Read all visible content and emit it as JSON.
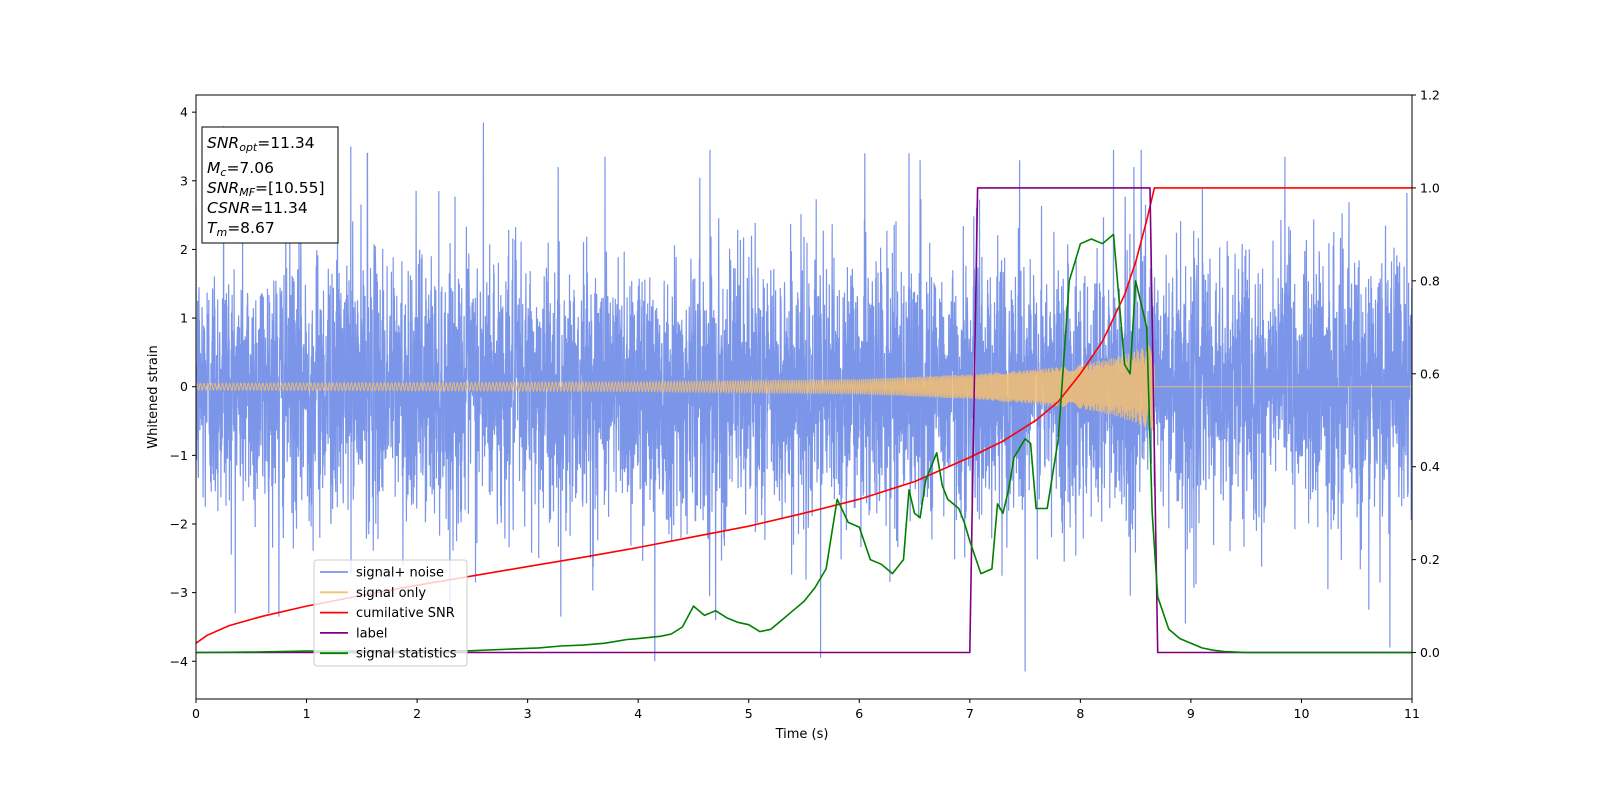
{
  "chart_data": {
    "type": "line",
    "xlabel": "Time (s)",
    "ylabel": "Whitened strain",
    "xlim": [
      0,
      11
    ],
    "ylim": [
      -4.55,
      4.25
    ],
    "y2lim": [
      -0.1,
      1.2
    ],
    "xticks": [
      "0",
      "1",
      "2",
      "3",
      "4",
      "5",
      "6",
      "7",
      "8",
      "9",
      "10",
      "11"
    ],
    "yticks": [
      "−4",
      "−3",
      "−2",
      "−1",
      "0",
      "1",
      "2",
      "3",
      "4"
    ],
    "y2ticks": [
      "0.0",
      "0.2",
      "0.4",
      "0.6",
      "0.8",
      "1.0",
      "1.2"
    ],
    "grid": false,
    "legend_position": "lower-left",
    "info_box": {
      "snr_opt": {
        "base": "SNR",
        "sub": "opt",
        "rest": "=11.34"
      },
      "mc": {
        "base": "M",
        "sub": "c",
        "rest": "=7.06"
      },
      "snr_mf": {
        "base": "SNR",
        "sub": "MF",
        "rest": "=[10.55]"
      },
      "csnr": {
        "base": "CSNR",
        "rest": "=11.34"
      },
      "tm": {
        "base": "T",
        "sub": "m",
        "rest": "=8.67"
      }
    },
    "series": [
      {
        "name": "signal+ noise",
        "color": "#7b95e8",
        "axis": "left",
        "noise_std": 0.95,
        "sample_spikes": [
          [
            0.25,
            3.8
          ],
          [
            0.75,
            -3.35
          ],
          [
            1.4,
            3.5
          ],
          [
            1.55,
            3.4
          ],
          [
            2.6,
            3.85
          ],
          [
            3.3,
            -3.35
          ],
          [
            3.7,
            3.35
          ],
          [
            4.15,
            -4.0
          ],
          [
            4.65,
            3.45
          ],
          [
            4.7,
            -3.4
          ],
          [
            5.65,
            -3.95
          ],
          [
            6.05,
            3.4
          ],
          [
            6.45,
            3.4
          ],
          [
            6.55,
            3.3
          ],
          [
            7.45,
            3.3
          ],
          [
            7.5,
            -4.15
          ],
          [
            8.3,
            3.45
          ],
          [
            8.55,
            3.45
          ],
          [
            8.95,
            -3.45
          ],
          [
            9.85,
            3.35
          ],
          [
            10.8,
            -3.8
          ]
        ]
      },
      {
        "name": "signal only",
        "color": "#f5c070",
        "axis": "left",
        "chirp_end": 8.67,
        "amplitude_envelope": [
          [
            0,
            0.05
          ],
          [
            4,
            0.07
          ],
          [
            6,
            0.11
          ],
          [
            7,
            0.18
          ],
          [
            7.5,
            0.24
          ],
          [
            8,
            0.32
          ],
          [
            8.3,
            0.42
          ],
          [
            8.5,
            0.53
          ],
          [
            8.67,
            0.65
          ]
        ],
        "after_merger": 0.0
      },
      {
        "name": "cumilative SNR",
        "color": "#ff0000",
        "axis": "right",
        "x": [
          0,
          0.1,
          0.3,
          0.6,
          1,
          1.5,
          2,
          2.5,
          3,
          3.5,
          4,
          4.5,
          5,
          5.5,
          6,
          6.5,
          7,
          7.3,
          7.6,
          7.8,
          8,
          8.2,
          8.4,
          8.5,
          8.6,
          8.67,
          8.7,
          9,
          10,
          11
        ],
        "values": [
          0.02,
          0.037,
          0.058,
          0.078,
          0.1,
          0.123,
          0.145,
          0.165,
          0.185,
          0.205,
          0.226,
          0.249,
          0.272,
          0.3,
          0.33,
          0.368,
          0.42,
          0.455,
          0.5,
          0.54,
          0.6,
          0.67,
          0.77,
          0.84,
          0.93,
          1.0,
          1.0,
          1.0,
          1.0,
          1.0
        ]
      },
      {
        "name": "label",
        "color": "#800080",
        "axis": "right",
        "x": [
          0,
          7.0,
          7.07,
          8.63,
          8.7,
          11
        ],
        "values": [
          0.0,
          0.0,
          1.0,
          1.0,
          0.0,
          0.0
        ]
      },
      {
        "name": "signal statistics",
        "color": "#008000",
        "axis": "right",
        "x": [
          0,
          0.5,
          1,
          1.5,
          2,
          2.5,
          2.9,
          3.1,
          3.3,
          3.5,
          3.7,
          3.9,
          4.0,
          4.2,
          4.3,
          4.4,
          4.5,
          4.6,
          4.7,
          4.8,
          4.9,
          5.0,
          5.1,
          5.2,
          5.3,
          5.4,
          5.5,
          5.6,
          5.7,
          5.8,
          5.9,
          6.0,
          6.1,
          6.2,
          6.3,
          6.4,
          6.45,
          6.5,
          6.55,
          6.6,
          6.7,
          6.75,
          6.8,
          6.9,
          6.95,
          7.0,
          7.1,
          7.2,
          7.25,
          7.3,
          7.35,
          7.4,
          7.5,
          7.55,
          7.6,
          7.7,
          7.8,
          7.9,
          8.0,
          8.1,
          8.2,
          8.3,
          8.4,
          8.45,
          8.5,
          8.55,
          8.6,
          8.65,
          8.7,
          8.8,
          8.9,
          9.0,
          9.1,
          9.2,
          9.3,
          9.5,
          10,
          11
        ],
        "values": [
          0.0,
          0.001,
          0.003,
          0.003,
          0.003,
          0.004,
          0.008,
          0.01,
          0.014,
          0.016,
          0.02,
          0.028,
          0.03,
          0.035,
          0.04,
          0.055,
          0.1,
          0.08,
          0.09,
          0.075,
          0.065,
          0.06,
          0.045,
          0.05,
          0.07,
          0.09,
          0.11,
          0.14,
          0.18,
          0.33,
          0.28,
          0.27,
          0.2,
          0.19,
          0.17,
          0.2,
          0.35,
          0.3,
          0.29,
          0.37,
          0.43,
          0.36,
          0.33,
          0.31,
          0.28,
          0.24,
          0.17,
          0.18,
          0.32,
          0.3,
          0.35,
          0.42,
          0.46,
          0.45,
          0.31,
          0.31,
          0.46,
          0.8,
          0.88,
          0.89,
          0.88,
          0.9,
          0.62,
          0.6,
          0.8,
          0.75,
          0.7,
          0.3,
          0.12,
          0.05,
          0.03,
          0.02,
          0.01,
          0.005,
          0.002,
          0.0,
          0.0,
          0.0
        ]
      }
    ]
  }
}
